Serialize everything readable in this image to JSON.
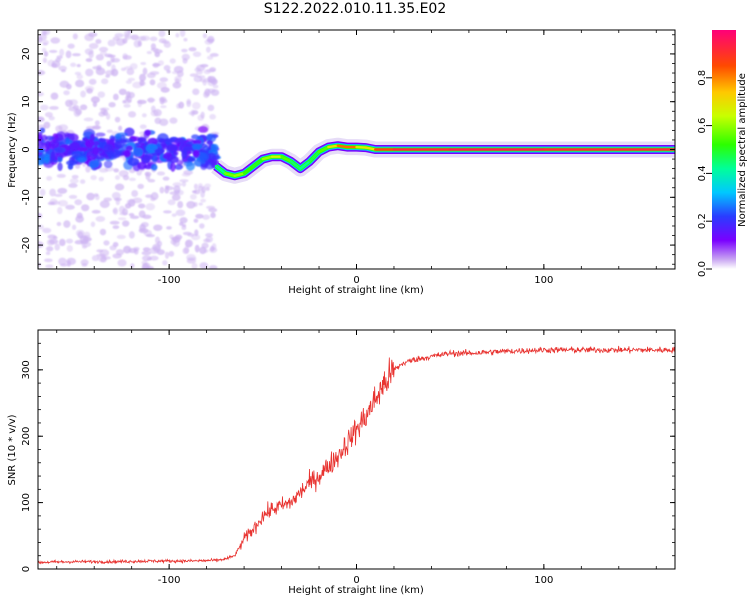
{
  "title": "S122.2022.010.11.35.E02",
  "colors": {
    "snr_line": "#e8322f",
    "spectrum_core_cold": "#6a00ff",
    "spectrum_scatter": "#c7a8f0",
    "axes": "#000000"
  },
  "chart_data": [
    {
      "type": "heatmap",
      "xlabel": "Height of straight line (km)",
      "ylabel": "Frequency (Hz)",
      "xlim": [
        -170,
        170
      ],
      "ylim": [
        -25,
        25
      ],
      "xticks": [
        -100,
        0,
        100
      ],
      "yticks": [
        -20,
        -10,
        0,
        10,
        20
      ],
      "colorbar": {
        "label": "Normalized spectral amplitude",
        "range": [
          0.0,
          1.0
        ],
        "ticks": [
          "0.0",
          "0.2",
          "0.4",
          "0.6",
          "0.8"
        ],
        "colormap": "gist_rainbow_r"
      },
      "signal_track": {
        "height_km": [
          -75,
          -70,
          -65,
          -60,
          -55,
          -50,
          -45,
          -40,
          -35,
          -30,
          -25,
          -20,
          -15,
          -10,
          -5,
          0,
          5,
          10,
          20,
          50,
          100,
          170
        ],
        "frequency_hz": [
          -3.5,
          -5.0,
          -5.5,
          -5.0,
          -3.5,
          -2.0,
          -1.5,
          -1.5,
          -2.5,
          -4.0,
          -2.5,
          -0.5,
          0.5,
          0.8,
          0.5,
          0.5,
          0.4,
          0.0,
          0.0,
          0.0,
          0.0,
          0.0
        ],
        "normalized_amplitude": [
          0.35,
          0.5,
          0.65,
          0.55,
          0.5,
          0.5,
          0.7,
          0.6,
          0.5,
          0.4,
          0.45,
          0.5,
          0.6,
          0.8,
          0.85,
          0.8,
          0.55,
          0.85,
          0.9,
          0.95,
          0.95,
          0.9
        ]
      },
      "noise_region_km": [
        -170,
        -75
      ]
    },
    {
      "type": "line",
      "xlabel": "Height of straight line (km)",
      "ylabel": "SNR (10 * v/v)",
      "xlim": [
        -170,
        170
      ],
      "ylim": [
        0,
        360
      ],
      "xticks": [
        -100,
        0,
        100
      ],
      "yticks": [
        0,
        100,
        200,
        300
      ],
      "series": [
        {
          "x": [
            -170,
            -150,
            -130,
            -110,
            -90,
            -75,
            -70,
            -65,
            -62,
            -60,
            -55,
            -50,
            -45,
            -40,
            -35,
            -30,
            -25,
            -20,
            -15,
            -10,
            -5,
            0,
            5,
            10,
            15,
            20,
            25,
            30,
            40,
            50,
            60,
            80,
            100,
            120,
            140,
            160,
            170
          ],
          "y": [
            10,
            11,
            11,
            12,
            12,
            13,
            15,
            20,
            35,
            45,
            60,
            80,
            90,
            95,
            100,
            115,
            130,
            140,
            155,
            170,
            190,
            210,
            230,
            255,
            280,
            300,
            310,
            315,
            320,
            325,
            325,
            328,
            330,
            330,
            330,
            330,
            330
          ]
        }
      ]
    }
  ]
}
